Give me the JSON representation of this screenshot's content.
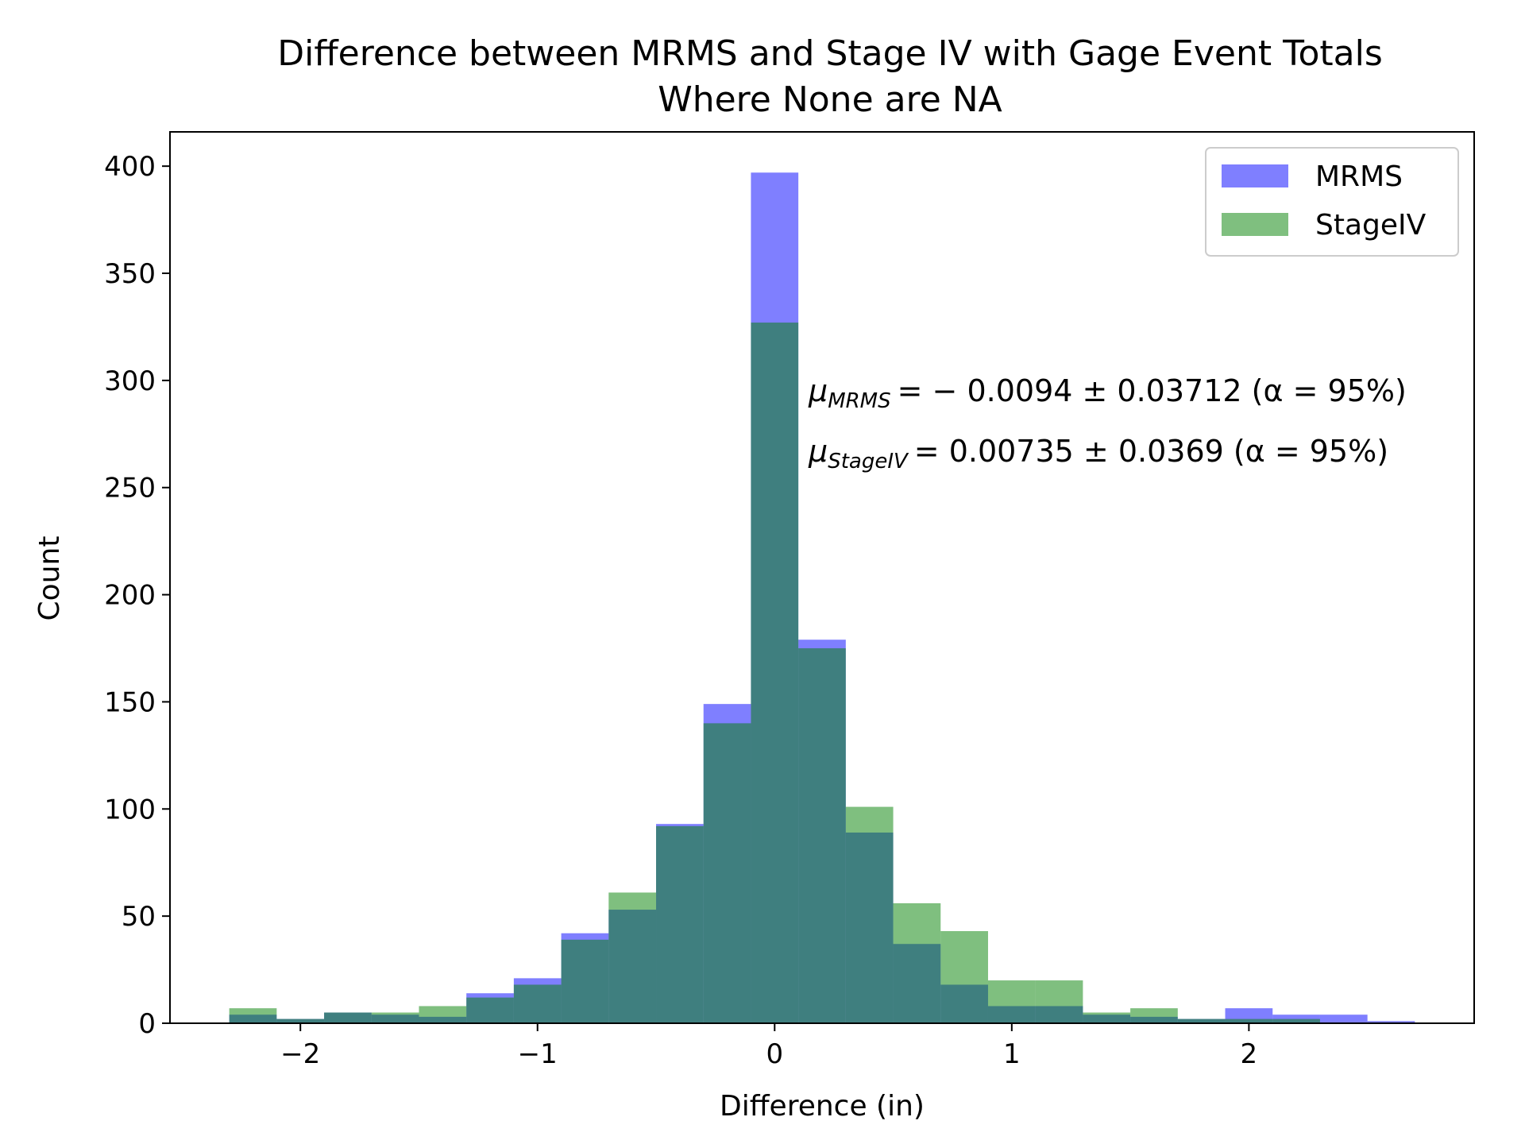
{
  "chart_data": {
    "type": "bar",
    "title": [
      "Difference between MRMS and Stage IV with Gage Event Totals",
      "Where None are NA"
    ],
    "xlabel": "Difference (in)",
    "ylabel": "Count",
    "xlim": [
      -2.55,
      2.95
    ],
    "ylim": [
      0,
      416
    ],
    "x_ticks": [
      -2,
      -1,
      0,
      1,
      2
    ],
    "x_tick_labels": [
      "−2",
      "−1",
      "0",
      "1",
      "2"
    ],
    "y_ticks": [
      0,
      50,
      100,
      150,
      200,
      250,
      300,
      350,
      400
    ],
    "y_tick_labels": [
      "0",
      "50",
      "100",
      "150",
      "200",
      "250",
      "300",
      "350",
      "400"
    ],
    "bin_edges": [
      -2.3,
      -2.1,
      -1.9,
      -1.7,
      -1.5,
      -1.3,
      -1.1,
      -0.9,
      -0.7,
      -0.5,
      -0.3,
      -0.1,
      0.1,
      0.3,
      0.5,
      0.7,
      0.9,
      1.1,
      1.3,
      1.5,
      1.7,
      1.9,
      2.1,
      2.3,
      2.5,
      2.7
    ],
    "series": [
      {
        "name": "MRMS",
        "color": "#0000ff",
        "alpha": 0.5,
        "values": [
          4,
          2,
          5,
          4,
          3,
          14,
          21,
          42,
          53,
          93,
          149,
          397,
          179,
          89,
          37,
          18,
          8,
          8,
          4,
          3,
          2,
          7,
          4,
          4,
          1
        ]
      },
      {
        "name": "StageIV",
        "color": "#008000",
        "alpha": 0.5,
        "values": [
          7,
          2,
          5,
          5,
          8,
          12,
          18,
          39,
          61,
          92,
          140,
          327,
          175,
          101,
          56,
          43,
          20,
          20,
          5,
          7,
          2,
          2,
          2,
          0,
          0
        ]
      }
    ],
    "annotations": [
      {
        "mu_sub": "MRMS",
        "text": "= − 0.0094 ± 0.03712 (α = 95%)"
      },
      {
        "mu_sub": "StageIV",
        "text": "= 0.00735 ± 0.0369 (α = 95%)"
      }
    ],
    "legend_position": "upper right",
    "grid": false
  }
}
